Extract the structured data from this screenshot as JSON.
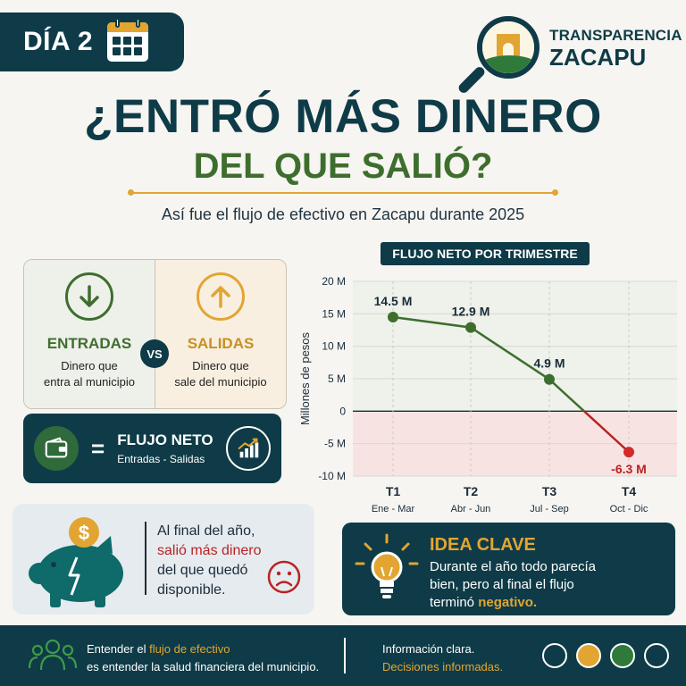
{
  "header": {
    "day_label": "DÍA 2",
    "brand_line1": "TRANSPARENCIA",
    "brand_line2": "ZACAPU"
  },
  "title": {
    "line1": "¿ENTRÓ MÁS DINERO",
    "line2": "DEL QUE SALIÓ?",
    "subtitle": "Así fue el flujo de efectivo en Zacapu durante 2025"
  },
  "comparison": {
    "entradas_label": "ENTRADAS",
    "entradas_desc1": "Dinero que",
    "entradas_desc2": "entra al municipio",
    "vs": "VS",
    "salidas_label": "SALIDAS",
    "salidas_desc1": "Dinero que",
    "salidas_desc2": "sale del municipio"
  },
  "net_flow": {
    "equals": "=",
    "label": "FLUJO NETO",
    "formula": "Entradas - Salidas"
  },
  "year_end": {
    "line1": "Al final del año,",
    "line2": "salió más dinero",
    "line3": "del que quedó",
    "line4": "disponible."
  },
  "idea": {
    "title": "IDEA CLAVE",
    "text_line1": "Durante el año todo parecía",
    "text_line2": "bien, pero al final el flujo",
    "text_line3": "terminó",
    "text_highlight": "negativo."
  },
  "footer": {
    "left_line1_pre": "Entender el",
    "left_line1_hl": "flujo de efectivo",
    "left_line2": "es entender la salud financiera del municipio.",
    "right_line1": "Información clara.",
    "right_line2": "Decisiones informadas."
  },
  "colors": {
    "navy": "#0e3b47",
    "green": "#3e6e2e",
    "gold": "#e2a532",
    "red": "#b82323",
    "footer_dots": [
      "#0e3b47",
      "#e2a532",
      "#2f7a3a",
      "#0e3b47"
    ]
  },
  "chart_data": {
    "type": "line",
    "title": "FLUJO NETO POR TRIMESTRE",
    "ylabel": "Millones de pesos",
    "xlabel": "",
    "categories": [
      "T1",
      "T2",
      "T3",
      "T4"
    ],
    "subcategories": [
      "Ene - Mar",
      "Abr - Jun",
      "Jul - Sep",
      "Oct - Dic"
    ],
    "values": [
      14.5,
      12.9,
      4.9,
      -6.3
    ],
    "value_labels": [
      "14.5 M",
      "12.9 M",
      "4.9 M",
      "-6.3 M"
    ],
    "ylim": [
      -10,
      20
    ],
    "yticks": [
      20,
      15,
      10,
      5,
      0,
      -5,
      -10
    ],
    "ytick_labels": [
      "20 M",
      "15 M",
      "10 M",
      "5 M",
      "0",
      "-5 M",
      "-10 M"
    ],
    "grid": true
  }
}
